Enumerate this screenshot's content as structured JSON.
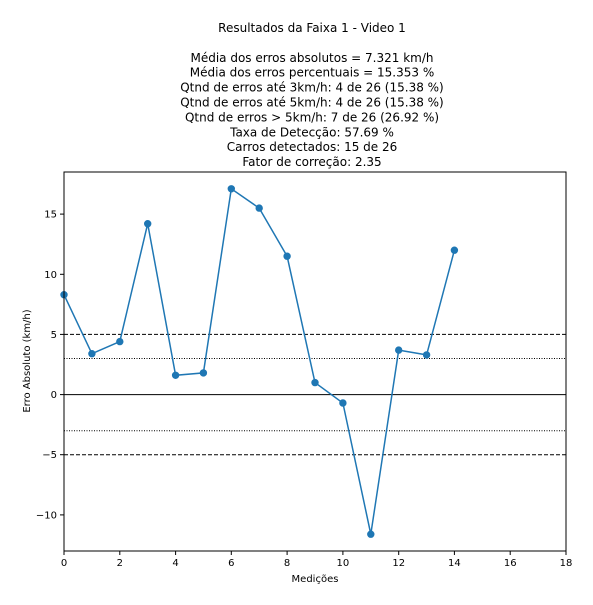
{
  "chart_data": {
    "type": "line",
    "title_lines": [
      "Resultados da Faixa 1 - Video 1",
      "",
      "Média dos erros absolutos =  7.321 km/h",
      "Média dos erros percentuais = 15.353 %",
      "Qtnd de erros até 3km/h: 4 de 26 (15.38 %)",
      "Qtnd de erros até 5km/h: 4 de 26 (15.38 %)",
      "Qtnd de erros > 5km/h: 7 de 26 (26.92 %)",
      "Taxa de Detecção: 57.69 %",
      "Carros detectados: 15 de 26",
      "Fator de correção: 2.35"
    ],
    "xlabel": "Medições",
    "ylabel": "Erro Absoluto (km/h)",
    "xlim": [
      0,
      18
    ],
    "ylim": [
      -13.0,
      18.5
    ],
    "xticks": [
      0,
      2,
      4,
      6,
      8,
      10,
      12,
      14,
      16,
      18
    ],
    "yticks": [
      -10,
      -5,
      0,
      5,
      10,
      15
    ],
    "ytick_labels": [
      "−10",
      "−5",
      "0",
      "5",
      "10",
      "15"
    ],
    "grid": false,
    "series": [
      {
        "color": "#1f77b4",
        "marker": "circle",
        "x": [
          0,
          1,
          2,
          3,
          4,
          5,
          6,
          7,
          8,
          9,
          10,
          11,
          12,
          13,
          14
        ],
        "y": [
          8.3,
          3.4,
          4.4,
          14.2,
          1.6,
          1.8,
          17.1,
          15.5,
          11.5,
          1.0,
          -0.7,
          -11.6,
          3.7,
          3.3,
          12.0
        ]
      }
    ],
    "reference_lines": [
      {
        "y": 5,
        "style": "dashed",
        "color": "#000000"
      },
      {
        "y": 3,
        "style": "dotted",
        "color": "#000000"
      },
      {
        "y": 0,
        "style": "solid",
        "color": "#000000"
      },
      {
        "y": -3,
        "style": "dotted",
        "color": "#000000"
      },
      {
        "y": -5,
        "style": "dashed",
        "color": "#000000"
      }
    ]
  }
}
